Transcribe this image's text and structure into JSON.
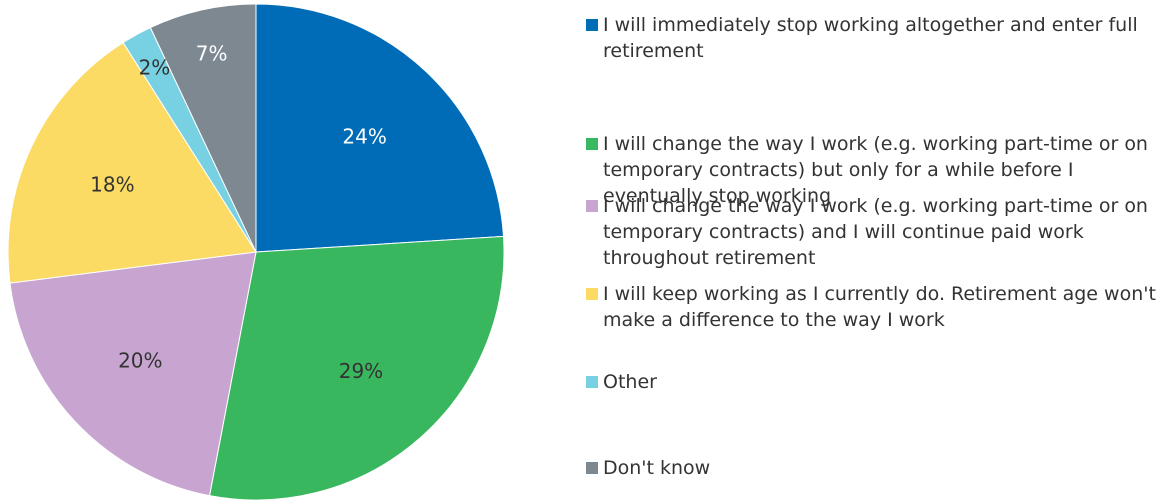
{
  "chart_data": {
    "type": "pie",
    "title": "",
    "slices": [
      {
        "name": "I will immediately stop working altogether and enter full retirement",
        "value": 24,
        "label": "24%",
        "color": "#006BB6",
        "label_color": "#ffffff"
      },
      {
        "name": "I will change the way I work (e.g. working part-time or on temporary contracts) but only for a while before I eventually stop working",
        "value": 29,
        "label": "29%",
        "color": "#39B75F",
        "label_color": "#333333"
      },
      {
        "name": "I will change the way I work (e.g. working part-time or on temporary contracts) and I will continue paid work throughout retirement",
        "value": 20,
        "label": "20%",
        "color": "#C7A5D0",
        "label_color": "#333333"
      },
      {
        "name": "I will keep working as I currently do. Retirement age won't make a difference to the way I work",
        "value": 18,
        "label": "18%",
        "color": "#FCDB65",
        "label_color": "#333333"
      },
      {
        "name": "Other",
        "value": 2,
        "label": "2%",
        "color": "#78D1E2",
        "label_color": "#333333"
      },
      {
        "name": "Don't know",
        "value": 7,
        "label": "7%",
        "color": "#7E8890",
        "label_color": "#ffffff"
      }
    ],
    "legend_position": "right"
  },
  "legend": {
    "items": [
      {
        "text": "I will immediately stop working altogether and enter full retirement"
      },
      {
        "text": "I will change the way I work (e.g. working part-time or on temporary contracts) but only for a while before I eventually stop working"
      },
      {
        "text": "I will change the way I work (e.g. working part-time or on temporary contracts) and I will continue paid work throughout retirement"
      },
      {
        "text": "I will keep working as I currently do. Retirement age won't make a difference to the way I work"
      },
      {
        "text": "Other"
      },
      {
        "text": "Don't know"
      }
    ]
  }
}
